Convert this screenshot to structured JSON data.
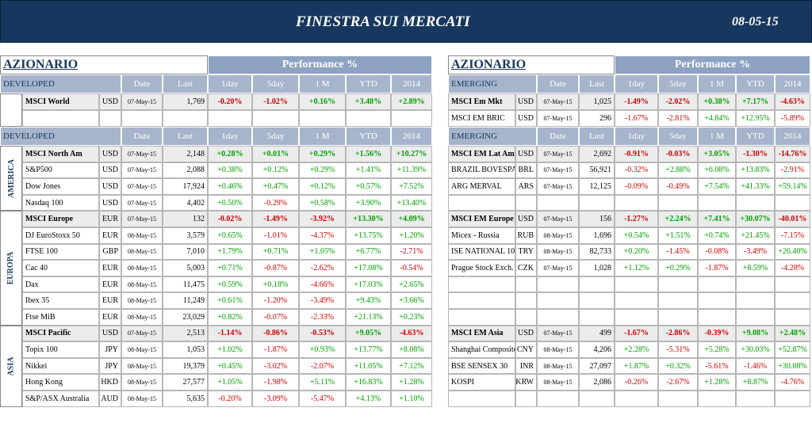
{
  "header": {
    "title": "FINESTRA SUI MERCATI",
    "date": "08-05-15"
  },
  "panels": [
    {
      "title": "AZIONARIO",
      "performance_label": "Performance %",
      "sections": [
        {
          "label": "DEVELOPED",
          "columns": [
            "Date",
            "Last",
            "1day",
            "5day",
            "1 M",
            "YTD",
            "2014"
          ],
          "groups": [
            {
              "rows": [
                [
                  "MSCI World",
                  "USD",
                  "07-May-15",
                  "1,769",
                  "-0.20%",
                  "-1.02%",
                  "+0.16%",
                  "+3.48%",
                  "+2.89%"
                ]
              ]
            }
          ]
        },
        {
          "label": "DEVELOPED",
          "columns": [
            "Date",
            "Last",
            "1day",
            "5day",
            "1 M",
            "YTD",
            "2014"
          ],
          "groups": [
            {
              "region": "AMERICA",
              "rows": [
                [
                  "MSCI North Am",
                  "USD",
                  "07-May-15",
                  "2,148",
                  "+0.28%",
                  "+0.01%",
                  "+0.29%",
                  "+1.56%",
                  "+10.27%"
                ],
                [
                  "S&P500",
                  "USD",
                  "07-May-15",
                  "2,088",
                  "+0.38%",
                  "+0.12%",
                  "+0.29%",
                  "+1.41%",
                  "+11.39%"
                ],
                [
                  "Dow Jones",
                  "USD",
                  "07-May-15",
                  "17,924",
                  "+0.46%",
                  "+0.47%",
                  "+0.12%",
                  "+0.57%",
                  "+7.52%"
                ],
                [
                  "Nasdaq 100",
                  "USD",
                  "07-May-15",
                  "4,402",
                  "+0.50%",
                  "-0.29%",
                  "+0.58%",
                  "+3.90%",
                  "+13.40%"
                ]
              ]
            },
            {
              "region": "EUROPA",
              "rows": [
                [
                  "MSCI Europe",
                  "EUR",
                  "07-May-15",
                  "132",
                  "-0.02%",
                  "-1.49%",
                  "-3.92%",
                  "+13.30%",
                  "+4.09%"
                ],
                [
                  "DJ EuroStoxx 50",
                  "EUR",
                  "08-May-15",
                  "3,579",
                  "+0.65%",
                  "-1.01%",
                  "-4.37%",
                  "+13.75%",
                  "+1.20%"
                ],
                [
                  "FTSE 100",
                  "GBP",
                  "08-May-15",
                  "7,010",
                  "+1.79%",
                  "+0.71%",
                  "+1.05%",
                  "+6.77%",
                  "-2.71%"
                ],
                [
                  "Cac 40",
                  "EUR",
                  "08-May-15",
                  "5,003",
                  "+0.71%",
                  "-0.87%",
                  "-2.62%",
                  "+17.08%",
                  "-0.54%"
                ],
                [
                  "Dax",
                  "EUR",
                  "08-May-15",
                  "11,475",
                  "+0.59%",
                  "+0.18%",
                  "-4.66%",
                  "+17.03%",
                  "+2.65%"
                ],
                [
                  "Ibex 35",
                  "EUR",
                  "08-May-15",
                  "11,249",
                  "+0.61%",
                  "-1.20%",
                  "-3.49%",
                  "+9.43%",
                  "+3.66%"
                ],
                [
                  "Ftse MiB",
                  "EUR",
                  "08-May-15",
                  "23,029",
                  "+0.82%",
                  "-0.07%",
                  "-2.33%",
                  "+21.13%",
                  "+0.23%"
                ]
              ]
            },
            {
              "region": "ASIA",
              "rows": [
                [
                  "MSCI Pacific",
                  "USD",
                  "07-May-15",
                  "2,513",
                  "-1.14%",
                  "-0.86%",
                  "-0.53%",
                  "+9.05%",
                  "-4.63%"
                ],
                [
                  "Topix 100",
                  "JPY",
                  "08-May-15",
                  "1,053",
                  "+1.02%",
                  "-1.87%",
                  "+0.93%",
                  "+13.77%",
                  "+8.08%"
                ],
                [
                  "Nikkei",
                  "JPY",
                  "08-May-15",
                  "19,379",
                  "+0.45%",
                  "-3.02%",
                  "-2.07%",
                  "+11.05%",
                  "+7.12%"
                ],
                [
                  "Hong Kong",
                  "HKD",
                  "08-May-15",
                  "27,577",
                  "+1.05%",
                  "-1.98%",
                  "+5.11%",
                  "+16.83%",
                  "+1.28%"
                ],
                [
                  "S&P/ASX Australia",
                  "AUD",
                  "08-May-15",
                  "5,635",
                  "-0.20%",
                  "-3.09%",
                  "-5.47%",
                  "+4.13%",
                  "+1.10%"
                ]
              ]
            }
          ]
        }
      ]
    },
    {
      "title": "AZIONARIO",
      "performance_label": "Performance %",
      "sections": [
        {
          "label": "EMERGING",
          "columns": [
            "Date",
            "Last",
            "1day",
            "5day",
            "1 M",
            "YTD",
            "2014"
          ],
          "groups": [
            {
              "rows": [
                [
                  "MSCI Em Mkt",
                  "USD",
                  "07-May-15",
                  "1,025",
                  "-1.49%",
                  "-2.02%",
                  "+0.38%",
                  "+7.17%",
                  "-4.63%"
                ],
                [
                  "MSCI EM BRIC",
                  "USD",
                  "07-May-15",
                  "296",
                  "-1.67%",
                  "-2.81%",
                  "+4.84%",
                  "+12.95%",
                  "-5.89%"
                ]
              ]
            }
          ]
        },
        {
          "label": "EMERGING",
          "columns": [
            "Date",
            "Last",
            "1day",
            "5day",
            "1 M",
            "YTD",
            "2014"
          ],
          "groups": [
            {
              "rows": [
                [
                  "MSCI EM Lat Am",
                  "USD",
                  "07-May-15",
                  "2,692",
                  "-0.91%",
                  "-0.03%",
                  "+3.05%",
                  "-1.30%",
                  "-14.76%"
                ],
                [
                  "BRAZIL BOVESPA",
                  "BRL",
                  "07-May-15",
                  "56,921",
                  "-0.32%",
                  "+2.88%",
                  "+6.08%",
                  "+13.83%",
                  "-2.91%"
                ],
                [
                  "ARG MERVAL",
                  "ARS",
                  "07-May-15",
                  "12,125",
                  "-0.09%",
                  "-0.49%",
                  "+7.54%",
                  "+41.33%",
                  "+59.14%"
                ]
              ]
            },
            {
              "rows": [
                [
                  "MSCI EM Europe",
                  "USD",
                  "07-May-15",
                  "156",
                  "-1.27%",
                  "+2.24%",
                  "+7.41%",
                  "+30.07%",
                  "-40.01%"
                ],
                [
                  "Micex - Russia",
                  "RUB",
                  "08-May-15",
                  "1,696",
                  "+0.54%",
                  "+1.51%",
                  "+0.74%",
                  "+21.45%",
                  "-7.15%"
                ],
                [
                  "ISE NATIONAL 10",
                  "TRY",
                  "08-May-15",
                  "82,733",
                  "+0.20%",
                  "-1.45%",
                  "-0.08%",
                  "-3.49%",
                  "+26.40%"
                ],
                [
                  "Prague Stock Exch.",
                  "CZK",
                  "07-May-15",
                  "1,028",
                  "+1.12%",
                  "+0.29%",
                  "-1.87%",
                  "+8.59%",
                  "-4.28%"
                ]
              ]
            },
            {
              "rows": [
                [
                  "MSCI EM Asia",
                  "USD",
                  "07-May-15",
                  "499",
                  "-1.67%",
                  "-2.86%",
                  "-0.39%",
                  "+9.08%",
                  "+2.48%"
                ],
                [
                  "Shanghai Composite",
                  "CNY",
                  "08-May-15",
                  "4,206",
                  "+2.28%",
                  "-5.31%",
                  "+5.28%",
                  "+30.03%",
                  "+52.87%"
                ],
                [
                  "BSE SENSEX 30",
                  "INR",
                  "08-May-15",
                  "27,097",
                  "+1.87%",
                  "+0.32%",
                  "-5.61%",
                  "-1.46%",
                  "+30.08%"
                ],
                [
                  "KOSPI",
                  "KRW",
                  "08-May-15",
                  "2,086",
                  "-0.26%",
                  "-2.67%",
                  "+1.28%",
                  "+8.87%",
                  "-4.76%"
                ]
              ]
            }
          ]
        }
      ]
    }
  ]
}
